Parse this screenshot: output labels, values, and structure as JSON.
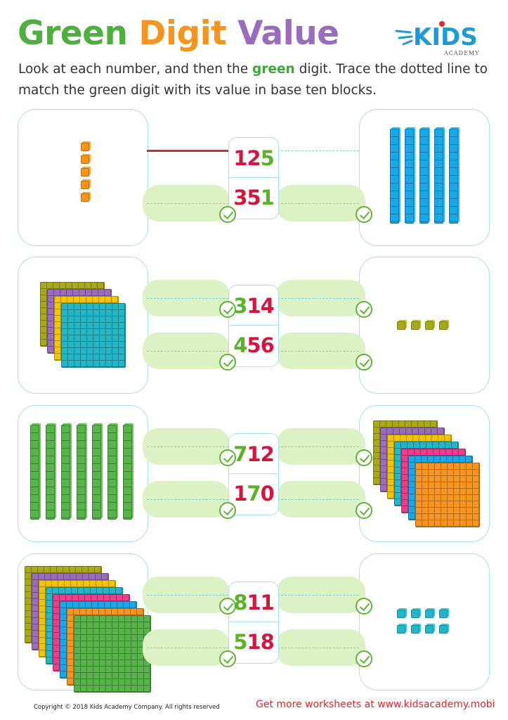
{
  "title": {
    "word1": "Green",
    "word2": "Digit",
    "word3": "Value"
  },
  "logo": {
    "name": "KIDS",
    "sub": "ACADEMY"
  },
  "instructions": {
    "before": "Look at each number, and then the",
    "highlight": "green",
    "after": "digit. Trace the dotted line to match the green digit with its value in base ten blocks."
  },
  "rows": [
    {
      "numbers": [
        {
          "id": "125",
          "parts": [
            {
              "t": "12",
              "c": "red"
            },
            {
              "t": "5",
              "c": "green"
            }
          ]
        },
        {
          "id": "351",
          "parts": [
            {
              "t": "35",
              "c": "red"
            },
            {
              "t": "1",
              "c": "green"
            }
          ]
        }
      ],
      "left": {
        "kind": "ones",
        "count": 5,
        "color": "#f7941d",
        "arrange": "column"
      },
      "right": {
        "kind": "tens",
        "count": 5,
        "color": "#1aa9e8"
      }
    },
    {
      "numbers": [
        {
          "id": "314",
          "parts": [
            {
              "t": "3",
              "c": "green"
            },
            {
              "t": "14",
              "c": "red"
            }
          ]
        },
        {
          "id": "456",
          "parts": [
            {
              "t": "4",
              "c": "green"
            },
            {
              "t": "56",
              "c": "red"
            }
          ]
        }
      ],
      "left": {
        "kind": "hundreds",
        "colors": [
          "#a8a919",
          "#9b6bbd",
          "#f2c500",
          "#23b6c6"
        ]
      },
      "right": {
        "kind": "ones",
        "count": 4,
        "color": "#a8a919",
        "arrange": "row"
      }
    },
    {
      "numbers": [
        {
          "id": "712",
          "parts": [
            {
              "t": "7",
              "c": "green"
            },
            {
              "t": "12",
              "c": "red"
            }
          ]
        },
        {
          "id": "170",
          "parts": [
            {
              "t": "1",
              "c": "red"
            },
            {
              "t": "7",
              "c": "green"
            },
            {
              "t": "0",
              "c": "red"
            }
          ]
        }
      ],
      "left": {
        "kind": "tens",
        "count": 7,
        "color": "#58b34a"
      },
      "right": {
        "kind": "hundreds",
        "colors": [
          "#a8a919",
          "#9b6bbd",
          "#f2c500",
          "#23b6c6",
          "#ec3d8c",
          "#1aa9e8",
          "#f7941d"
        ]
      }
    },
    {
      "numbers": [
        {
          "id": "811",
          "parts": [
            {
              "t": "8",
              "c": "green"
            },
            {
              "t": "11",
              "c": "red"
            }
          ]
        },
        {
          "id": "518",
          "parts": [
            {
              "t": "5",
              "c": "green"
            },
            {
              "t": "18",
              "c": "red"
            }
          ]
        }
      ],
      "left": {
        "kind": "hundreds",
        "colors": [
          "#a8a919",
          "#9b6bbd",
          "#f2c500",
          "#23b6c6",
          "#ec3d8c",
          "#1aa9e8",
          "#f7941d",
          "#58b34a"
        ]
      },
      "right": {
        "kind": "ones",
        "count": 8,
        "color": "#23b6c6",
        "arrange": "grid"
      }
    }
  ],
  "footer": {
    "copyright": "Copyright © 2018 Kids Academy Company. All rights reserved",
    "promo": "Get more worksheets at www.kidsacademy.mobi"
  },
  "colors": {
    "number_red": "#d4163f",
    "number_green": "#58b325",
    "trace_line": "#c0323a",
    "box_border": "#a9dff0",
    "pill": "#ddf2c4"
  }
}
